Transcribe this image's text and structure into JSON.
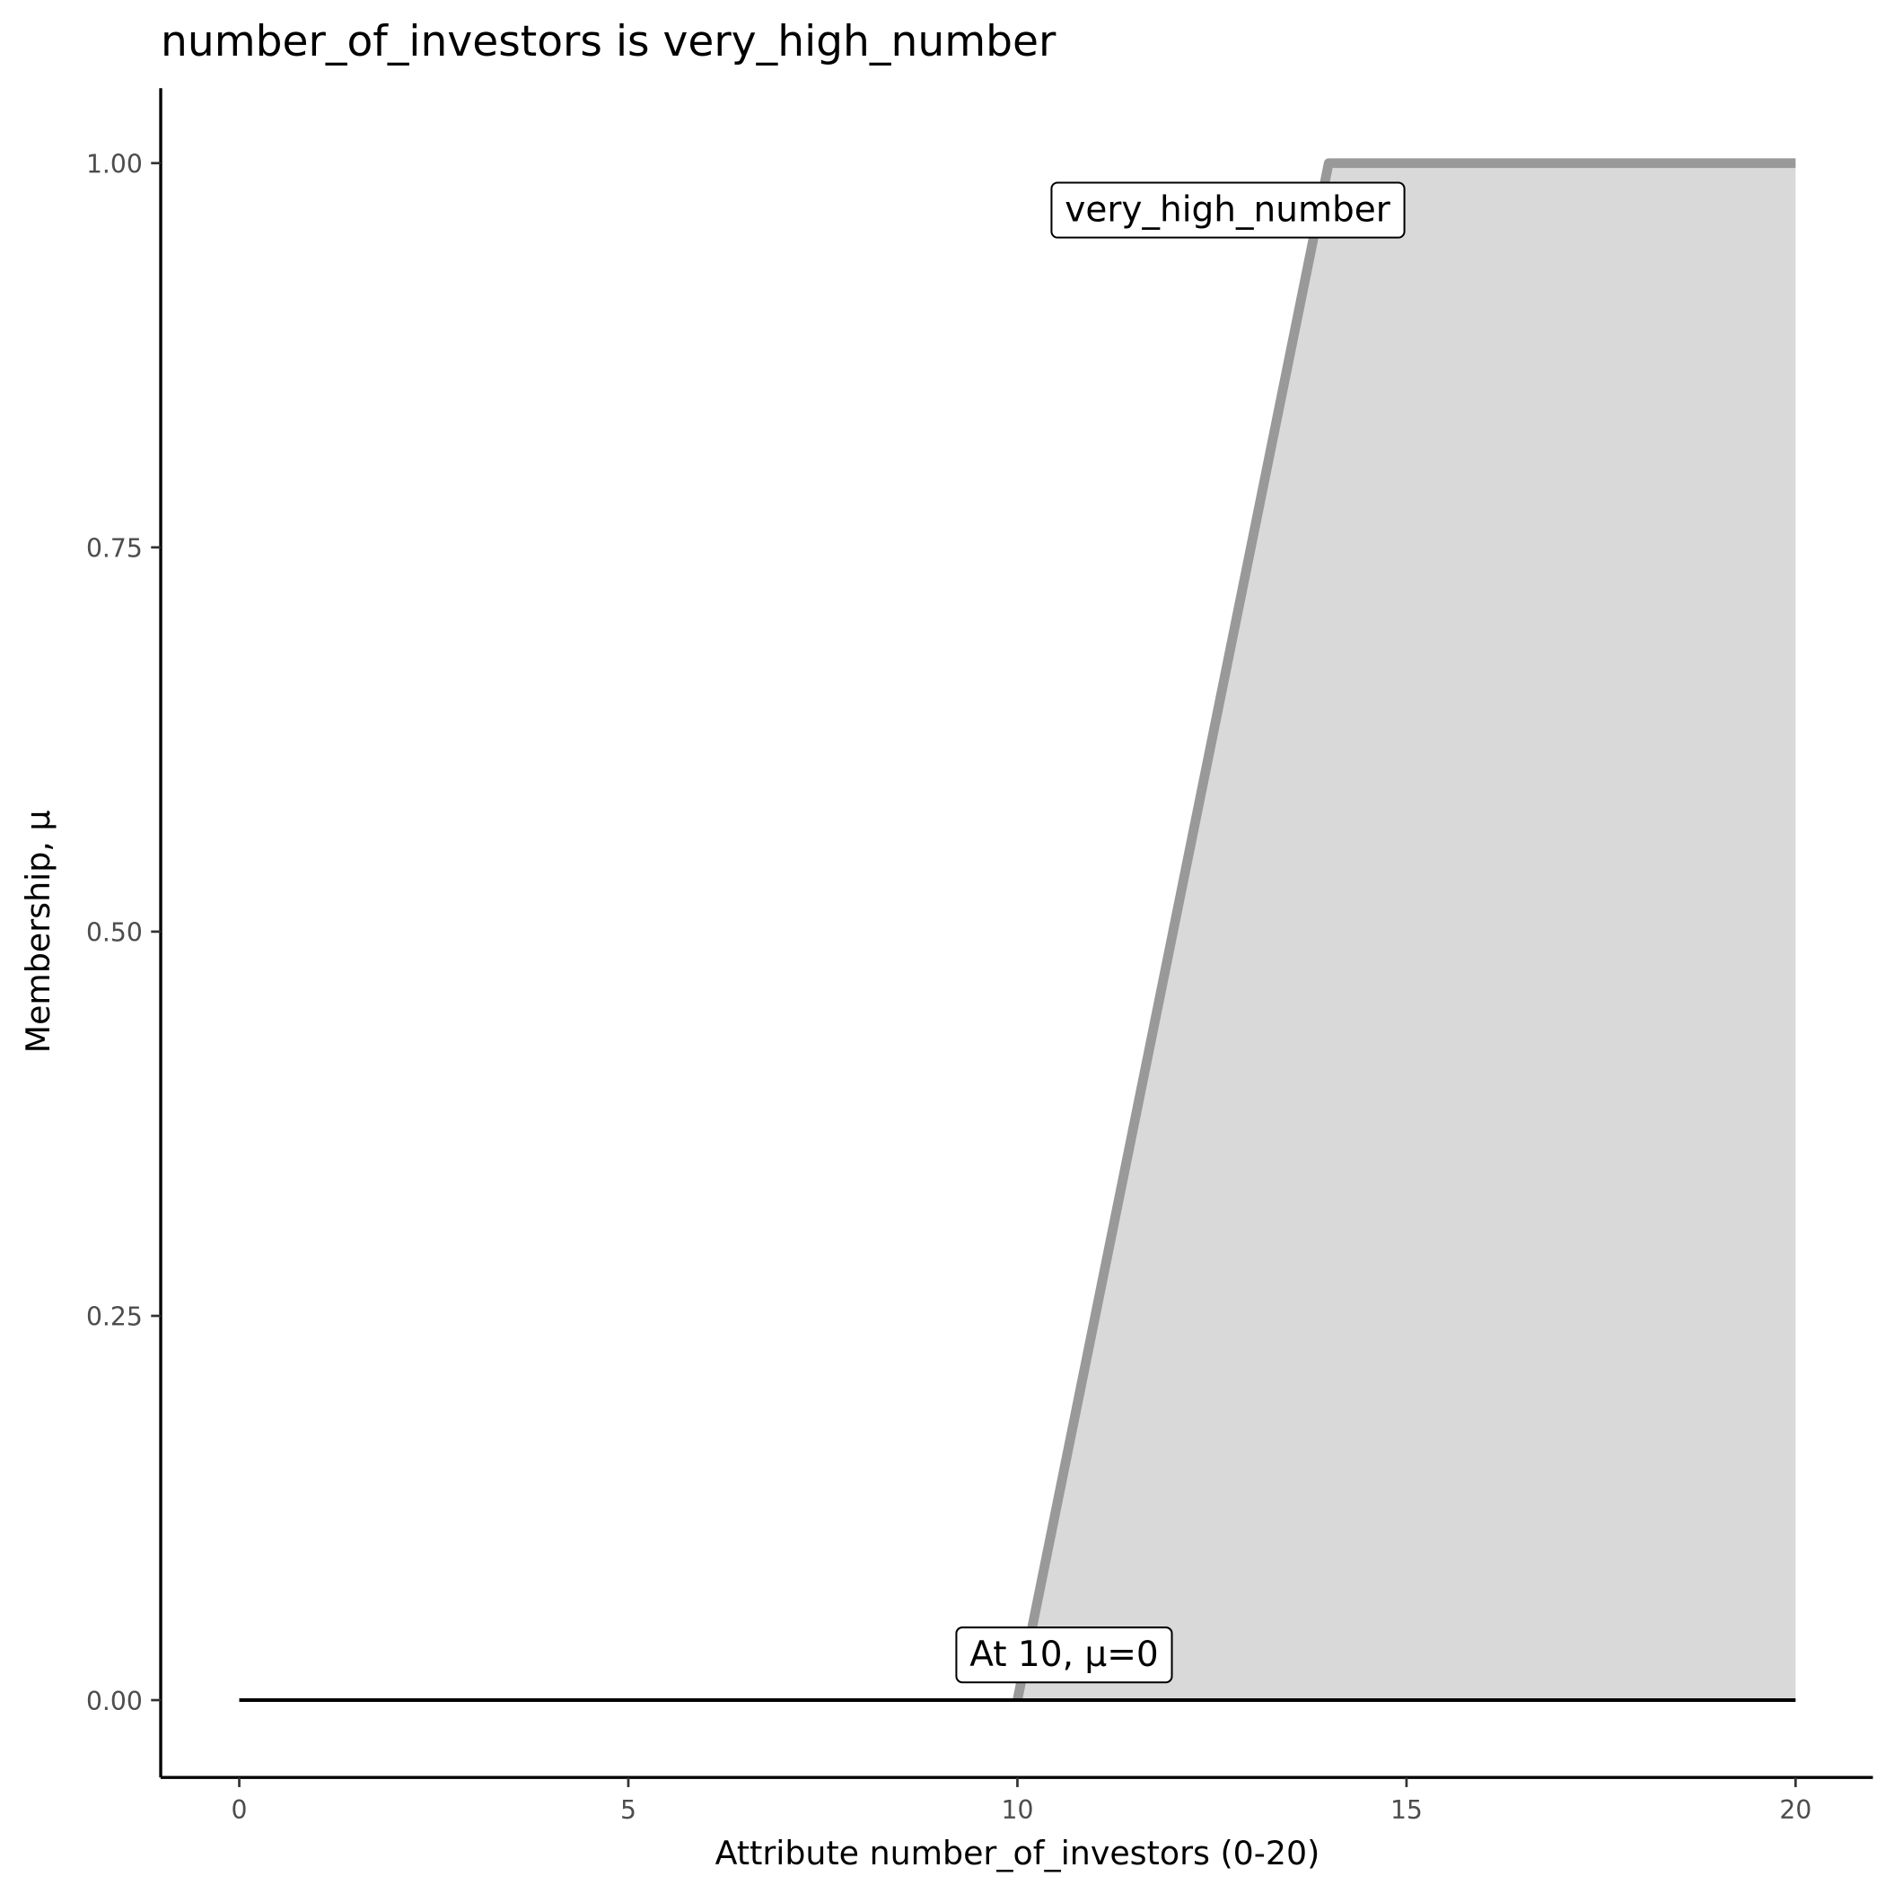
{
  "chart_data": {
    "type": "area",
    "title": "number_of_investors is very_high_number",
    "xlabel": "Attribute number_of_investors (0-20)",
    "ylabel": "Membership, μ",
    "xlim": [
      -1,
      21
    ],
    "ylim": [
      -0.05,
      1.05
    ],
    "x_ticks": [
      "0",
      "5",
      "10",
      "15",
      "20"
    ],
    "y_ticks": [
      "0.00",
      "0.25",
      "0.50",
      "0.75",
      "1.00"
    ],
    "grid": false,
    "series": [
      {
        "name": "very_high_number",
        "points": [
          [
            10,
            0
          ],
          [
            14,
            1
          ],
          [
            20,
            1
          ]
        ],
        "line_color": "#999999",
        "fill_color": "#d9d9d9"
      }
    ],
    "baseline": {
      "points": [
        [
          0,
          0
        ],
        [
          20,
          0
        ]
      ],
      "color": "#000000"
    },
    "annotations": [
      {
        "text": "very_high_number",
        "x": 12.7,
        "y": 0.97
      },
      {
        "text": "At 10, μ=0",
        "x": 10.6,
        "y": 0.03
      }
    ]
  }
}
